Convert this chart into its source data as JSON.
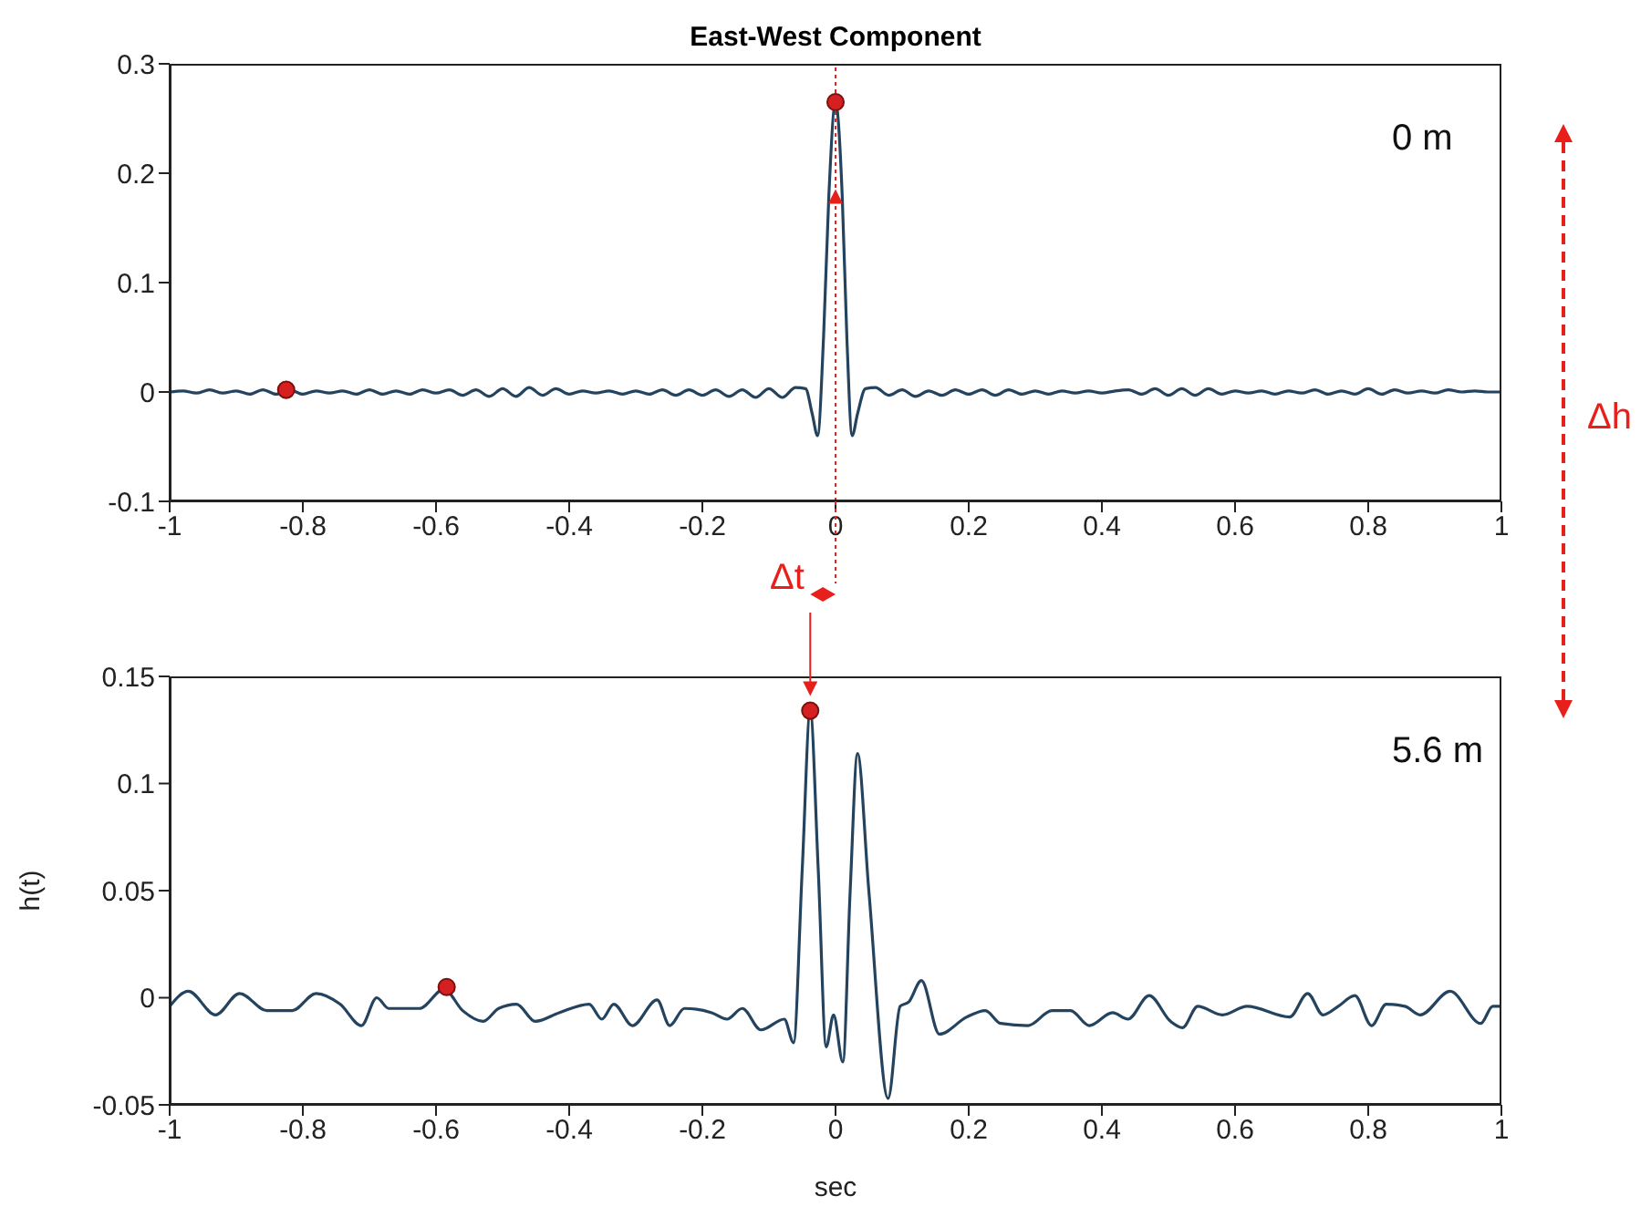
{
  "chart_data": [
    {
      "type": "line",
      "title": "East-West Component",
      "xlim": [
        -1,
        1
      ],
      "xticks": [
        -1,
        -0.8,
        -0.6,
        -0.4,
        -0.2,
        0,
        0.2,
        0.4,
        0.6,
        0.8,
        1
      ],
      "ylim": [
        -0.1,
        0.3
      ],
      "yticks": [
        -0.1,
        0,
        0.1,
        0.2,
        0.3
      ],
      "annotations": [
        "0 m",
        "Δt",
        "Δh"
      ],
      "ref_lines": [
        {
          "axis": "x",
          "value": 0,
          "color": "#e8201b",
          "line_style": "dotted"
        }
      ],
      "series": [
        {
          "color": "#24435f",
          "x": [
            -1,
            -0.98,
            -0.96,
            -0.94,
            -0.92,
            -0.9,
            -0.88,
            -0.86,
            -0.84,
            -0.82,
            -0.8,
            -0.78,
            -0.76,
            -0.74,
            -0.72,
            -0.7,
            -0.68,
            -0.66,
            -0.64,
            -0.62,
            -0.6,
            -0.58,
            -0.56,
            -0.54,
            -0.52,
            -0.5,
            -0.48,
            -0.46,
            -0.44,
            -0.42,
            -0.4,
            -0.38,
            -0.36,
            -0.34,
            -0.32,
            -0.3,
            -0.28,
            -0.26,
            -0.24,
            -0.22,
            -0.2,
            -0.18,
            -0.16,
            -0.14,
            -0.12,
            -0.1,
            -0.08,
            -0.06,
            -0.045,
            -0.035,
            -0.027,
            -0.018,
            -0.01,
            0,
            0.01,
            0.017,
            0.025,
            0.033,
            0.045,
            0.06,
            0.08,
            0.1,
            0.12,
            0.14,
            0.16,
            0.18,
            0.2,
            0.22,
            0.24,
            0.26,
            0.28,
            0.3,
            0.32,
            0.34,
            0.36,
            0.38,
            0.4,
            0.42,
            0.44,
            0.46,
            0.48,
            0.5,
            0.52,
            0.54,
            0.56,
            0.58,
            0.6,
            0.62,
            0.64,
            0.66,
            0.68,
            0.7,
            0.72,
            0.74,
            0.76,
            0.78,
            0.8,
            0.82,
            0.84,
            0.86,
            0.88,
            0.9,
            0.92,
            0.94,
            0.96,
            0.98,
            1
          ],
          "values": [
            0,
            0.001,
            -0.001,
            0.002,
            -0.001,
            0.001,
            -0.002,
            0.002,
            -0.002,
            0.002,
            -0.002,
            0.001,
            -0.001,
            0.001,
            -0.002,
            0.002,
            -0.002,
            0.001,
            -0.002,
            0.002,
            -0.001,
            0.002,
            -0.003,
            0.002,
            -0.004,
            0.003,
            -0.004,
            0.004,
            -0.003,
            0.003,
            -0.002,
            0.001,
            -0.001,
            0.001,
            -0.002,
            0.001,
            -0.002,
            0.002,
            -0.003,
            0.002,
            -0.003,
            0.002,
            -0.004,
            0.002,
            -0.005,
            0.003,
            -0.005,
            0.004,
            0.003,
            -0.02,
            -0.04,
            0.05,
            0.18,
            0.265,
            0.18,
            0.05,
            -0.04,
            -0.02,
            0.003,
            0.004,
            -0.003,
            0.002,
            -0.004,
            0.001,
            -0.003,
            0.002,
            -0.002,
            0.002,
            -0.003,
            0.002,
            -0.002,
            0.001,
            -0.002,
            0.001,
            -0.001,
            0.001,
            -0.001,
            0.001,
            0.002,
            -0.002,
            0.003,
            -0.003,
            0.003,
            -0.003,
            0.003,
            -0.002,
            0.001,
            -0.001,
            0.001,
            -0.002,
            0.001,
            -0.001,
            0.002,
            -0.002,
            0.001,
            -0.002,
            0.003,
            -0.002,
            0.002,
            -0.001,
            0.001,
            -0.001,
            0.002,
            0,
            0.001,
            0,
            0
          ]
        },
        {
          "type": "scatter",
          "color": "#d42020",
          "x": [
            -0.825,
            0
          ],
          "values": [
            0.002,
            0.265
          ]
        }
      ]
    },
    {
      "type": "line",
      "xlabel": "sec",
      "ylabel": "h(t)",
      "xlim": [
        -1,
        1
      ],
      "xticks": [
        -1,
        -0.8,
        -0.6,
        -0.4,
        -0.2,
        0,
        0.2,
        0.4,
        0.6,
        0.8,
        1
      ],
      "ylim": [
        -0.05,
        0.15
      ],
      "yticks": [
        -0.05,
        0,
        0.05,
        0.1,
        0.15
      ],
      "annotations": [
        "5.6 m"
      ],
      "series": [
        {
          "color": "#24435f",
          "x": [
            -1,
            -0.972,
            -0.931,
            -0.895,
            -0.854,
            -0.816,
            -0.78,
            -0.744,
            -0.712,
            -0.689,
            -0.671,
            -0.625,
            -0.588,
            -0.56,
            -0.529,
            -0.506,
            -0.479,
            -0.451,
            -0.415,
            -0.37,
            -0.351,
            -0.333,
            -0.305,
            -0.268,
            -0.249,
            -0.227,
            -0.186,
            -0.163,
            -0.14,
            -0.112,
            -0.077,
            -0.063,
            -0.05,
            -0.038,
            -0.026,
            -0.014,
            -0.003,
            0.011,
            0.022,
            0.033,
            0.05,
            0.079,
            0.097,
            0.11,
            0.129,
            0.156,
            0.197,
            0.225,
            0.248,
            0.289,
            0.325,
            0.353,
            0.381,
            0.416,
            0.439,
            0.471,
            0.503,
            0.521,
            0.544,
            0.581,
            0.618,
            0.682,
            0.709,
            0.732,
            0.755,
            0.78,
            0.805,
            0.827,
            0.855,
            0.878,
            0.923,
            0.969,
            0.987,
            1
          ],
          "values": [
            -0.004,
            0.003,
            -0.008,
            0.002,
            -0.006,
            -0.006,
            0.002,
            -0.003,
            -0.013,
            0,
            -0.005,
            -0.005,
            0.004,
            -0.006,
            -0.011,
            -0.005,
            -0.003,
            -0.011,
            -0.007,
            -0.003,
            -0.01,
            -0.003,
            -0.013,
            -0.001,
            -0.013,
            -0.005,
            -0.007,
            -0.01,
            -0.005,
            -0.015,
            -0.01,
            -0.021,
            0.06,
            0.134,
            0.06,
            -0.023,
            -0.008,
            -0.03,
            0.05,
            0.114,
            0.05,
            -0.047,
            -0.004,
            -0.002,
            0.008,
            -0.017,
            -0.009,
            -0.006,
            -0.012,
            -0.013,
            -0.006,
            -0.006,
            -0.013,
            -0.007,
            -0.01,
            0.001,
            -0.011,
            -0.014,
            -0.004,
            -0.008,
            -0.004,
            -0.009,
            0.002,
            -0.008,
            -0.004,
            0.001,
            -0.013,
            -0.003,
            -0.004,
            -0.008,
            0.003,
            -0.012,
            -0.004,
            -0.004
          ]
        },
        {
          "type": "scatter",
          "color": "#d42020",
          "x": [
            -0.584,
            -0.038
          ],
          "values": [
            0.005,
            0.134
          ]
        }
      ]
    }
  ]
}
